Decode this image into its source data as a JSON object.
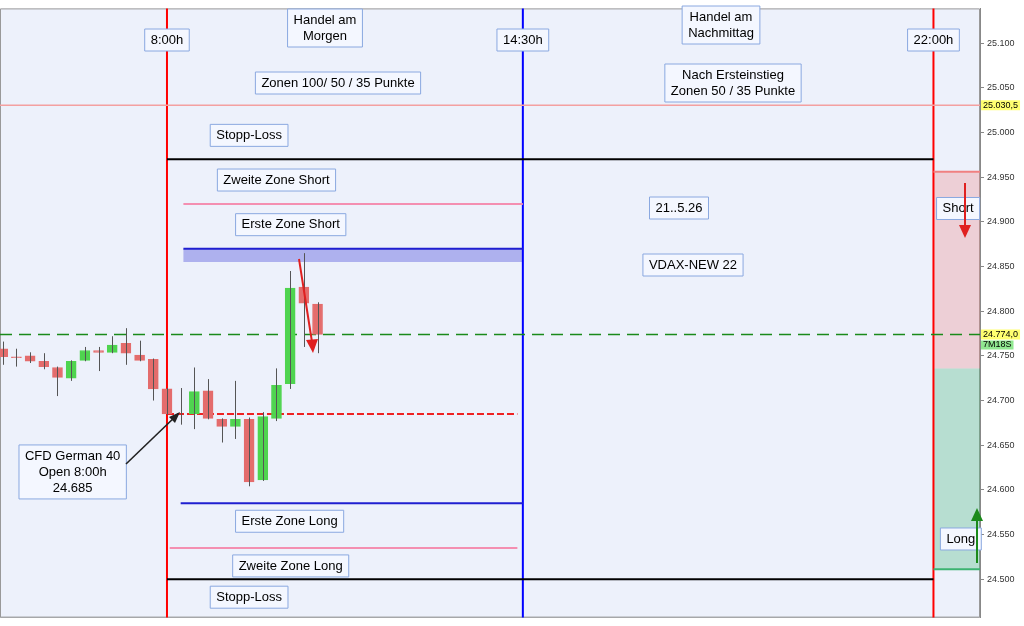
{
  "chart_data": {
    "type": "candlestick",
    "x": [
      5,
      5.25,
      5.5,
      5.75,
      6,
      6.25,
      6.5,
      6.75,
      7,
      7.25,
      7.5,
      7.75,
      8,
      8.25,
      8.5,
      8.75,
      9,
      9.25,
      9.5,
      9.75,
      10,
      10.25,
      10.5,
      10.75
    ],
    "ohlc": [
      [
        24758,
        24766,
        24740,
        24749
      ],
      [
        24749,
        24758,
        24738,
        24748
      ],
      [
        24750,
        24754,
        24742,
        24744
      ],
      [
        24744,
        24753,
        24735,
        24738
      ],
      [
        24737,
        24738,
        24705,
        24726
      ],
      [
        24725,
        24745,
        24722,
        24744
      ],
      [
        24745,
        24760,
        24744,
        24756
      ],
      [
        24756,
        24760,
        24733,
        24754
      ],
      [
        24754,
        24772,
        24753,
        24762
      ],
      [
        24764,
        24781,
        24740,
        24753
      ],
      [
        24751,
        24767,
        24744,
        24745
      ],
      [
        24746,
        24747,
        24700,
        24713
      ],
      [
        24713,
        24714,
        24684,
        24685
      ],
      [
        24685,
        24714,
        24673,
        24685
      ],
      [
        24685,
        24737,
        24668,
        24710
      ],
      [
        24711,
        24724,
        24679,
        24680
      ],
      [
        24679,
        24680,
        24653,
        24671
      ],
      [
        24671,
        24722,
        24657,
        24679
      ],
      [
        24679,
        24681,
        24604,
        24609
      ],
      [
        24611,
        24687,
        24610,
        24682
      ],
      [
        24680,
        24736,
        24677,
        24717
      ],
      [
        24719,
        24845,
        24713,
        24826
      ],
      [
        24827,
        24865,
        24760,
        24809
      ],
      [
        24808,
        24810,
        24753,
        24774
      ]
    ],
    "colors": [
      "#e46c6c",
      "#e46c6c",
      "#e46c6c",
      "#e46c6c",
      "#e46c6c",
      "#4fd44f",
      "#4fd44f",
      "#e46c6c",
      "#4fd44f",
      "#e46c6c",
      "#e46c6c",
      "#e46c6c",
      "#e46c6c",
      "#e46c6c",
      "#4fd44f",
      "#e46c6c",
      "#e46c6c",
      "#4fd44f",
      "#e46c6c",
      "#4fd44f",
      "#4fd44f",
      "#4fd44f",
      "#e46c6c",
      "#e46c6c"
    ],
    "xlim": [
      4.95,
      22.85
    ],
    "ylim": [
      24457,
      25139
    ],
    "yticks": [
      {
        "value": 24500,
        "label": "24.500"
      },
      {
        "value": 24550,
        "label": "24.550"
      },
      {
        "value": 24600,
        "label": "24.600"
      },
      {
        "value": 24650,
        "label": "24.650"
      },
      {
        "value": 24700,
        "label": "24.700"
      },
      {
        "value": 24750,
        "label": "24.750"
      },
      {
        "value": 24800,
        "label": "24.800"
      },
      {
        "value": 24850,
        "label": "24.850"
      },
      {
        "value": 24900,
        "label": "24.900"
      },
      {
        "value": 24950,
        "label": "24.950"
      },
      {
        "value": 25000,
        "label": "25.000"
      },
      {
        "value": 25050,
        "label": "25.050"
      },
      {
        "value": 25100,
        "label": "25.100"
      }
    ],
    "tick_labels": "y",
    "series": [
      {
        "type": "line",
        "color": "#000000",
        "x": [
          8,
          22
        ],
        "values": [
          24970,
          24970
        ]
      },
      {
        "type": "line",
        "color": "#f48fb1",
        "x": [
          8.3,
          14.5
        ],
        "values": [
          24920,
          24920
        ]
      },
      {
        "type": "line",
        "color": "#1f1fd0",
        "x": [
          8.3,
          14.5
        ],
        "values": [
          24870,
          24870
        ],
        "lower": [
          24855,
          24855
        ],
        "upper": [
          24870,
          24870
        ]
      },
      {
        "type": "line",
        "color": "#ee2222",
        "x": [
          8,
          14.4
        ],
        "values": [
          24685,
          24685
        ],
        "line_style": "dashed"
      },
      {
        "type": "line",
        "color": "#1f1fd0",
        "x": [
          8.25,
          14.5
        ],
        "values": [
          24585,
          24585
        ]
      },
      {
        "type": "line",
        "color": "#f48fb1",
        "x": [
          8.05,
          14.4
        ],
        "values": [
          24535,
          24535
        ]
      },
      {
        "type": "line",
        "color": "#000000",
        "x": [
          8,
          22
        ],
        "values": [
          24500,
          24500
        ]
      },
      {
        "type": "line",
        "color": "#f08080",
        "x": [
          22,
          22.85
        ],
        "values": [
          24956,
          24956
        ],
        "lower": [
          24736,
          24736
        ],
        "upper": [
          24956,
          24956
        ]
      },
      {
        "type": "line",
        "color": "#3cb371",
        "x": [
          22,
          22.85
        ],
        "values": [
          24511,
          24511
        ],
        "lower": [
          24511,
          24511
        ],
        "upper": [
          24736,
          24736
        ]
      }
    ],
    "ref_lines": [
      {
        "axis": "x",
        "value": 8,
        "label": "8:00h",
        "color": "#ff0000"
      },
      {
        "axis": "x",
        "value": 14.5,
        "label": "14:30h",
        "color": "#0000ff"
      },
      {
        "axis": "x",
        "value": 22,
        "label": "22:00h",
        "color": "#ff0000"
      },
      {
        "axis": "y",
        "value": 25030.5,
        "label": "25.030,5",
        "color": "#f4a0a0"
      },
      {
        "axis": "y",
        "value": 24774,
        "label": "24.774,0",
        "color": "#1a8a1a",
        "line_style": "dashed"
      }
    ],
    "annotations": [
      {
        "text": "Stopp-Loss",
        "x": 9.5,
        "y": 24970
      },
      {
        "text": "Zweite Zone Short",
        "x": 10.0,
        "y": 24920
      },
      {
        "text": "Erste Zone Short",
        "x": 10.26,
        "y": 24870
      },
      {
        "text": "Erste Zone Long",
        "x": 10.24,
        "y": 24585
      },
      {
        "text": "Zweite Zone Long",
        "x": 10.26,
        "y": 24535
      },
      {
        "text": "Stopp-Loss",
        "x": 9.5,
        "y": 24500
      },
      {
        "text": "Short",
        "x": 22.45,
        "y": 24915
      },
      {
        "text": "Long",
        "x": 22.5,
        "y": 24545
      },
      {
        "text": "CFD German 40\nOpen 8:00h\n24.685",
        "x": 8.25,
        "y": 24685
      },
      "Handel am\nMorgen",
      "Zonen 100/ 50 / 35 Punkte",
      "Handel am\nNachmittag",
      "Nach Ersteinstieg\nZonen 50 / 35 Punkte",
      "21..5.26",
      "VDAX-NEW 22",
      "7M18S"
    ]
  }
}
